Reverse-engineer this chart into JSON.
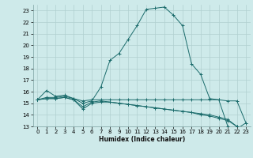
{
  "xlabel": "Humidex (Indice chaleur)",
  "bg_color": "#ceeaea",
  "grid_color": "#b0d0d0",
  "line_color": "#1a6b6b",
  "xlim": [
    -0.5,
    23.5
  ],
  "ylim": [
    13,
    23.5
  ],
  "yticks": [
    13,
    14,
    15,
    16,
    17,
    18,
    19,
    20,
    21,
    22,
    23
  ],
  "xticks": [
    0,
    1,
    2,
    3,
    4,
    5,
    6,
    7,
    8,
    9,
    10,
    11,
    12,
    13,
    14,
    15,
    16,
    17,
    18,
    19,
    20,
    21,
    22,
    23
  ],
  "series": [
    {
      "x": [
        0,
        1,
        2,
        3,
        4,
        5,
        6,
        7,
        8,
        9,
        10,
        11,
        12,
        13,
        14,
        15,
        16,
        17,
        18,
        19,
        20,
        21,
        22,
        23
      ],
      "y": [
        15.3,
        16.1,
        15.6,
        15.7,
        15.4,
        15.0,
        15.2,
        16.4,
        18.7,
        19.3,
        20.5,
        21.7,
        23.1,
        23.2,
        23.3,
        22.6,
        21.7,
        18.4,
        17.5,
        15.4,
        15.3,
        13.0,
        12.8,
        13.3
      ]
    },
    {
      "x": [
        0,
        1,
        2,
        3,
        4,
        5,
        6,
        7,
        8,
        9,
        10,
        11,
        12,
        13,
        14,
        15,
        16,
        17,
        18,
        19,
        20,
        21,
        22,
        23
      ],
      "y": [
        15.3,
        15.5,
        15.5,
        15.6,
        15.4,
        15.2,
        15.3,
        15.3,
        15.3,
        15.3,
        15.3,
        15.3,
        15.3,
        15.3,
        15.3,
        15.3,
        15.3,
        15.3,
        15.3,
        15.3,
        15.3,
        15.2,
        15.2,
        13.3
      ]
    },
    {
      "x": [
        0,
        1,
        2,
        3,
        4,
        5,
        6,
        7,
        8,
        9,
        10,
        11,
        12,
        13,
        14,
        15,
        16,
        17,
        18,
        19,
        20,
        21,
        22,
        23
      ],
      "y": [
        15.3,
        15.4,
        15.4,
        15.5,
        15.3,
        14.7,
        15.1,
        15.2,
        15.1,
        15.0,
        14.9,
        14.8,
        14.7,
        14.6,
        14.5,
        14.4,
        14.3,
        14.2,
        14.1,
        14.0,
        13.8,
        13.6,
        13.0,
        12.8
      ]
    },
    {
      "x": [
        0,
        1,
        2,
        3,
        4,
        5,
        6,
        7,
        8,
        9,
        10,
        11,
        12,
        13,
        14,
        15,
        16,
        17,
        18,
        19,
        20,
        21,
        22,
        23
      ],
      "y": [
        15.3,
        15.4,
        15.4,
        15.5,
        15.3,
        14.5,
        15.0,
        15.1,
        15.1,
        15.0,
        14.9,
        14.8,
        14.7,
        14.6,
        14.5,
        14.4,
        14.3,
        14.2,
        14.0,
        13.9,
        13.7,
        13.5,
        13.0,
        12.8
      ]
    }
  ]
}
